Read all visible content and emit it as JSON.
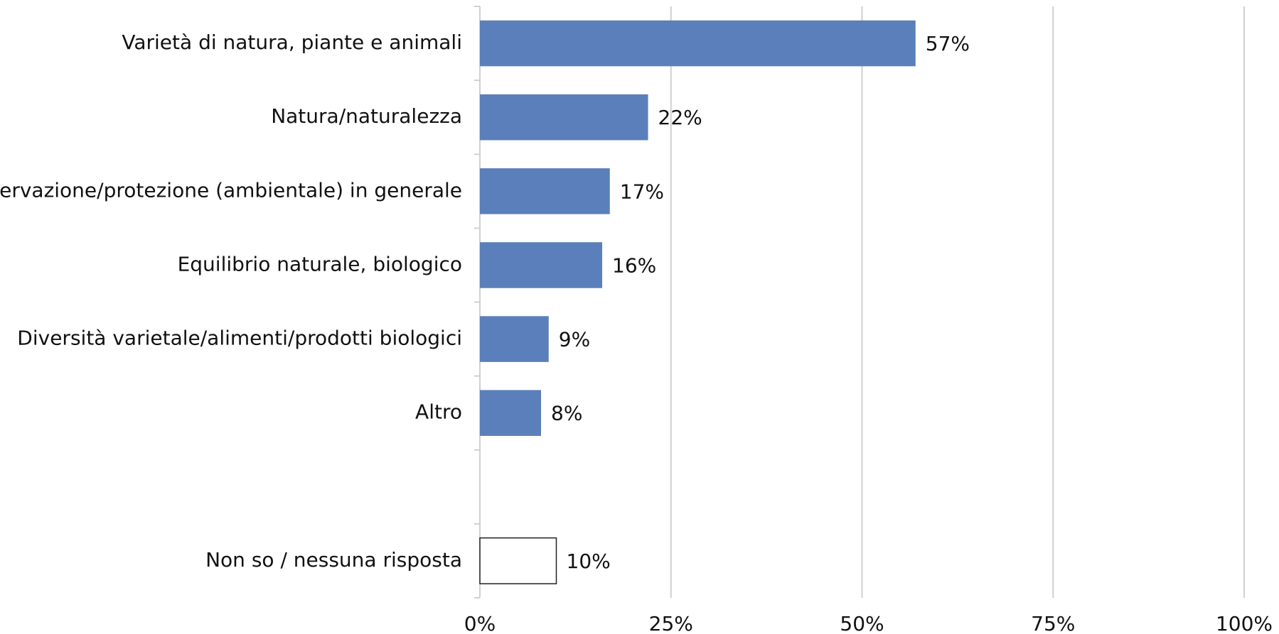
{
  "chart_data": {
    "type": "hbar",
    "categories": [
      "Varietà di natura, piante e animali",
      "Natura/naturalezza",
      "Conservazione/protezione (ambientale) in generale",
      "Equilibrio naturale, biologico",
      "Diversità varietale/alimenti/prodotti biologici",
      "Altro",
      null,
      "Non so / nessuna risposta"
    ],
    "values": [
      57,
      22,
      17,
      16,
      9,
      8,
      null,
      10
    ],
    "value_labels": [
      "57%",
      "22%",
      "17%",
      "16%",
      "9%",
      "8%",
      null,
      "10%"
    ],
    "colors": [
      "#5a7fba",
      "#5a7fba",
      "#5a7fba",
      "#5a7fba",
      "#5a7fba",
      "#5a7fba",
      null,
      "#ffffff"
    ],
    "xlim": [
      0,
      100
    ],
    "xticks": [
      {
        "value": 0,
        "label": "0%"
      },
      {
        "value": 25,
        "label": "25%"
      },
      {
        "value": 50,
        "label": "50%"
      },
      {
        "value": 75,
        "label": "75%"
      },
      {
        "value": 100,
        "label": "100%"
      }
    ],
    "grid": true
  }
}
